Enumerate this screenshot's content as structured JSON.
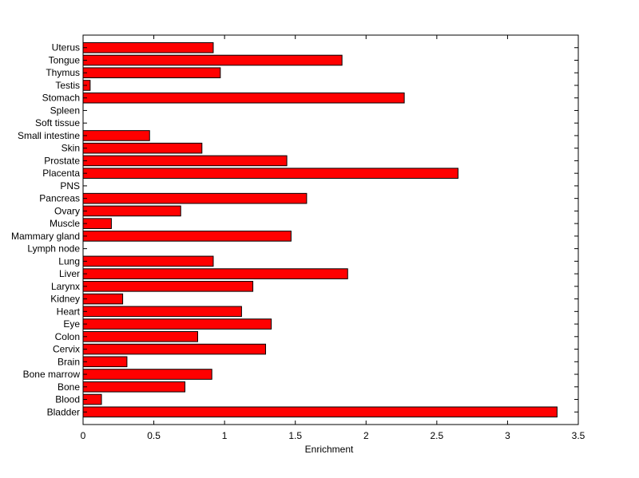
{
  "chart_data": {
    "type": "bar",
    "orientation": "horizontal",
    "categories": [
      "Bladder",
      "Blood",
      "Bone",
      "Bone marrow",
      "Brain",
      "Cervix",
      "Colon",
      "Eye",
      "Heart",
      "Kidney",
      "Larynx",
      "Liver",
      "Lung",
      "Lymph node",
      "Mammary gland",
      "Muscle",
      "Ovary",
      "Pancreas",
      "PNS",
      "Placenta",
      "Prostate",
      "Skin",
      "Small intestine",
      "Soft tissue",
      "Spleen",
      "Stomach",
      "Testis",
      "Thymus",
      "Tongue",
      "Uterus"
    ],
    "values": [
      3.35,
      0.13,
      0.72,
      0.91,
      0.31,
      1.29,
      0.81,
      1.33,
      1.12,
      0.28,
      1.2,
      1.87,
      0.92,
      0,
      1.47,
      0.2,
      0.69,
      1.58,
      0,
      2.65,
      1.44,
      0.84,
      0.47,
      0,
      0,
      2.27,
      0.05,
      0.97,
      1.83,
      0.92
    ],
    "xlabel": "Enrichment",
    "ylabel": "",
    "title": "",
    "xlim": [
      0,
      3.5
    ],
    "xticks": [
      "0",
      "0.5",
      "1",
      "1.5",
      "2",
      "2.5",
      "3",
      "3.5"
    ],
    "grid": false,
    "bar_color": "#ff0000",
    "bar_edge_color": "#000000"
  }
}
